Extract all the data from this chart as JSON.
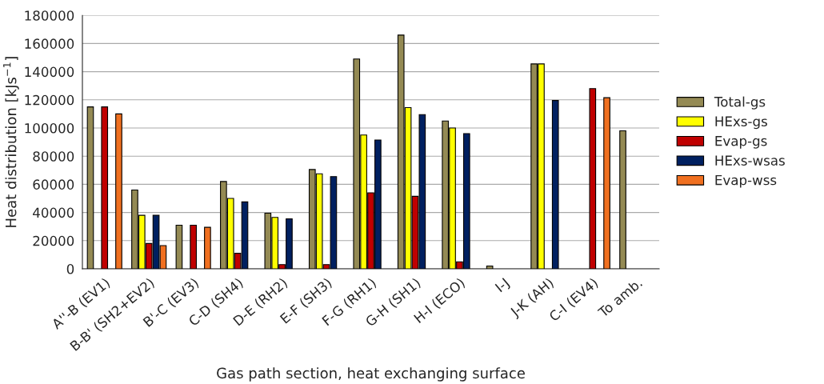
{
  "chart_data": {
    "type": "bar",
    "xlabel": "Gas path section, heat exchanging surface",
    "ylabel": "Heat distribution [kJs$^{−1}$]",
    "categories": [
      "A''-B (EV1)",
      "B-B' (SH2+EV2)",
      "B'-C (EV3)",
      "C-D (SH4)",
      "D-E (RH2)",
      "E-F (SH3)",
      "F-G (RH1)",
      "G-H (SH1)",
      "H-I (ECO)",
      "I-J",
      "J-K (AH)",
      "C-I (EV4)",
      "To amb."
    ],
    "series": [
      {
        "name": "Total-gs",
        "color": "#948a54",
        "values": [
          115000,
          56000,
          31000,
          62000,
          39500,
          70500,
          149000,
          166000,
          105000,
          2000,
          145500,
          null,
          98000
        ]
      },
      {
        "name": "HExs-gs",
        "color": "#ffff00",
        "values": [
          null,
          38000,
          null,
          50000,
          36500,
          67500,
          95000,
          114500,
          100000,
          null,
          145500,
          null,
          null
        ]
      },
      {
        "name": "Evap-gs",
        "color": "#c00000",
        "values": [
          115000,
          18000,
          31000,
          11000,
          3000,
          3000,
          54000,
          51500,
          5000,
          null,
          null,
          128000,
          null
        ]
      },
      {
        "name": "HExs-wsas",
        "color": "#002060",
        "values": [
          null,
          38000,
          null,
          47500,
          35500,
          65500,
          91500,
          109500,
          96000,
          null,
          119500,
          null,
          null
        ]
      },
      {
        "name": "Evap-wss",
        "color": "#f07020",
        "values": [
          110000,
          16500,
          29500,
          null,
          null,
          null,
          null,
          null,
          null,
          null,
          null,
          121500,
          null
        ]
      }
    ],
    "ylim": [
      0,
      180000
    ],
    "yticks": [
      0,
      20000,
      40000,
      60000,
      80000,
      100000,
      120000,
      140000,
      160000,
      180000
    ],
    "grid": "y",
    "legend": "right"
  }
}
